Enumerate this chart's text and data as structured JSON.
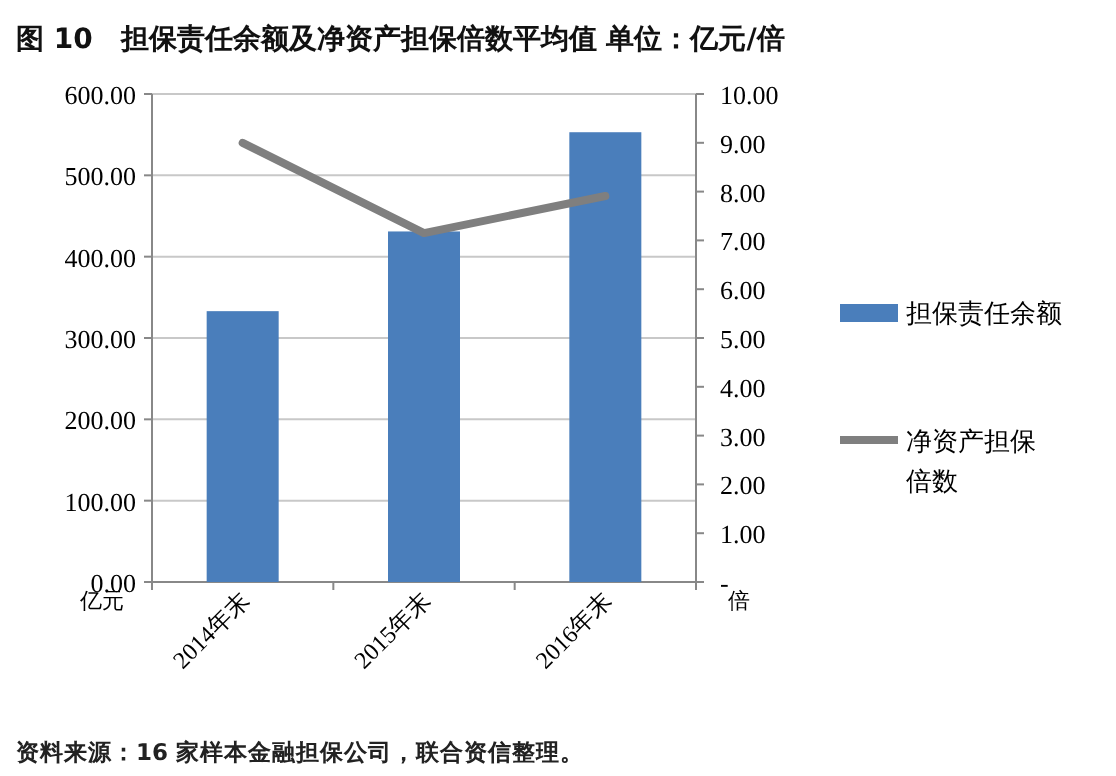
{
  "chart_data": {
    "type": "bar",
    "title": "图 10　担保责任余额及净资产担保倍数平均值  单位：亿元/倍",
    "categories": [
      "2014年末",
      "2015年末",
      "2016年末"
    ],
    "series": [
      {
        "name": "担保责任余额",
        "color": "#4a7ebb",
        "values": [
          333,
          431,
          553
        ]
      },
      {
        "name": "净资产担保倍数",
        "type": "line",
        "axis": "y2",
        "color": "#7f7f7f",
        "values": [
          9.0,
          7.15,
          7.91
        ]
      }
    ],
    "ylabel": "亿元",
    "y2label": "倍",
    "ylim": [
      0,
      600
    ],
    "yticks": [
      {
        "value": 0,
        "label": "0.00"
      },
      {
        "value": 100,
        "label": "100.00"
      },
      {
        "value": 200,
        "label": "200.00"
      },
      {
        "value": 300,
        "label": "300.00"
      },
      {
        "value": 400,
        "label": "400.00"
      },
      {
        "value": 500,
        "label": "500.00"
      },
      {
        "value": 600,
        "label": "600.00"
      }
    ],
    "y2lim": [
      0,
      10
    ],
    "y2ticks": [
      {
        "value": 0,
        "label": "-"
      },
      {
        "value": 1,
        "label": "1.00"
      },
      {
        "value": 2,
        "label": "2.00"
      },
      {
        "value": 3,
        "label": "3.00"
      },
      {
        "value": 4,
        "label": "4.00"
      },
      {
        "value": 5,
        "label": "5.00"
      },
      {
        "value": 6,
        "label": "6.00"
      },
      {
        "value": 7,
        "label": "7.00"
      },
      {
        "value": 8,
        "label": "8.00"
      },
      {
        "value": 9,
        "label": "9.00"
      },
      {
        "value": 10,
        "label": "10.00"
      }
    ],
    "grid": "y",
    "legend": "right",
    "annotations": [
      "资料来源：16 家样本金融担保公司，联合资信整理。"
    ]
  }
}
